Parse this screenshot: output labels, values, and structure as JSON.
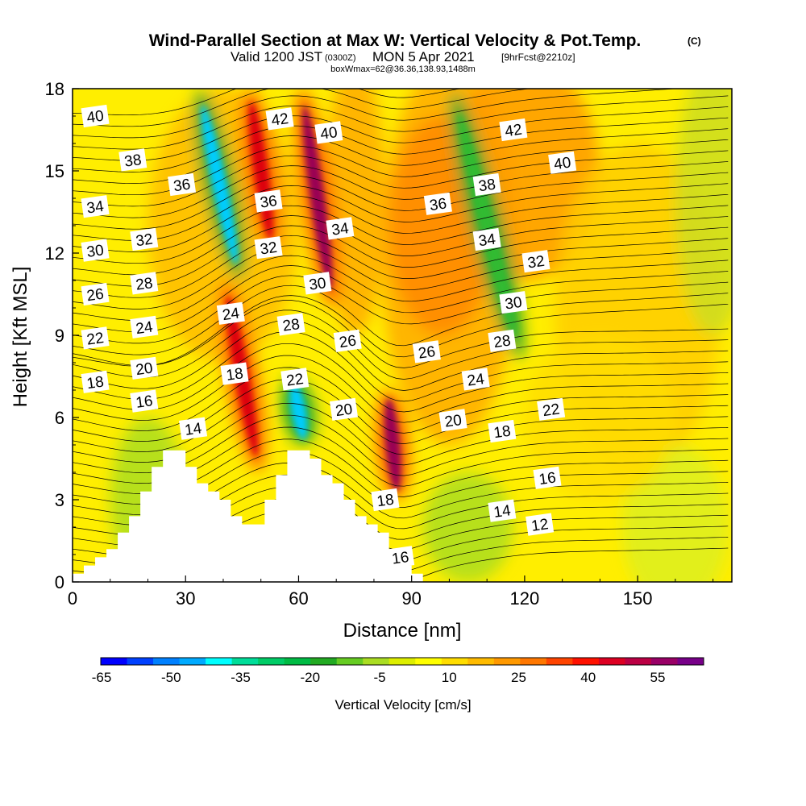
{
  "header": {
    "title": "Wind-Parallel Section at Max W: Vertical Velocity & Pot.Temp.",
    "copyright": "(C)",
    "valid_prefix": "Valid 1200 JST",
    "valid_utc": "(0300Z)",
    "valid_date": "MON 5 Apr 2021",
    "forecast": "[9hrFcst@2210z]",
    "boxinfo": "boxWmax=62@36.36,138.93,1488m"
  },
  "chart_data": {
    "type": "heatmap",
    "title": "Wind-Parallel Section at Max W: Vertical Velocity & Pot.Temp.",
    "xlabel": "Distance [nm]",
    "ylabel": "Height [Kft MSL]",
    "xlim": [
      0,
      175
    ],
    "ylim": [
      0,
      18
    ],
    "x_ticks": [
      0,
      30,
      60,
      90,
      120,
      150
    ],
    "y_ticks": [
      0,
      3,
      6,
      9,
      12,
      15,
      18
    ],
    "colorbar": {
      "label": "Vertical Velocity [cm/s]",
      "ticks": [
        "-65",
        "-50",
        "-35",
        "-20",
        "-5",
        "10",
        "25",
        "40",
        "55"
      ],
      "colors": [
        "#0000ff",
        "#0040ff",
        "#0080ff",
        "#00aaff",
        "#00ffff",
        "#00dd99",
        "#00cc66",
        "#00bb44",
        "#22aa22",
        "#66cc22",
        "#aadd22",
        "#ddee00",
        "#ffff00",
        "#ffdd00",
        "#ffbb00",
        "#ff9900",
        "#ff7700",
        "#ff4400",
        "#ff1100",
        "#dd0022",
        "#bb0044",
        "#990066",
        "#770088"
      ]
    },
    "vv_features": [
      {
        "type": "updraft",
        "x": 45,
        "y_range": [
          4,
          11
        ],
        "peak": 45
      },
      {
        "type": "updraft",
        "x": 50,
        "y_range": [
          12,
          18
        ],
        "peak": 40
      },
      {
        "type": "updraft",
        "x": 65,
        "y_range": [
          10,
          18
        ],
        "peak": 55
      },
      {
        "type": "updraft",
        "x": 85,
        "y_range": [
          3,
          7
        ],
        "peak": 50
      },
      {
        "type": "downdraft",
        "x": 39,
        "y_range": [
          11,
          18
        ],
        "peak": -45
      },
      {
        "type": "downdraft",
        "x": 60,
        "y_range": [
          5,
          7.5
        ],
        "peak": -50
      },
      {
        "type": "downdraft",
        "x": 110,
        "y_range": [
          8,
          18
        ],
        "peak": -20
      }
    ],
    "terrain": {
      "x": [
        0,
        3,
        6,
        9,
        12,
        15,
        18,
        21,
        24,
        27,
        30,
        33,
        36,
        39,
        42,
        45,
        48,
        51,
        54,
        57,
        60,
        63,
        66,
        69,
        72,
        75,
        78,
        81,
        84,
        87,
        90,
        93
      ],
      "y": [
        0.3,
        0.6,
        0.9,
        1.2,
        1.8,
        2.4,
        3.3,
        4.2,
        4.8,
        4.8,
        4.2,
        3.6,
        3.3,
        3.0,
        2.4,
        2.1,
        2.1,
        3.0,
        3.9,
        4.8,
        4.8,
        4.5,
        3.9,
        3.6,
        3.0,
        2.4,
        2.1,
        1.8,
        0.9,
        0.6,
        0.3,
        0.0
      ]
    },
    "theta_labels": [
      {
        "text": "40",
        "x": 6,
        "y": 17.0
      },
      {
        "text": "38",
        "x": 16,
        "y": 15.4
      },
      {
        "text": "36",
        "x": 29,
        "y": 14.5
      },
      {
        "text": "34",
        "x": 6,
        "y": 13.7
      },
      {
        "text": "32",
        "x": 19,
        "y": 12.5
      },
      {
        "text": "30",
        "x": 6,
        "y": 12.1
      },
      {
        "text": "28",
        "x": 19,
        "y": 10.9
      },
      {
        "text": "26",
        "x": 6,
        "y": 10.5
      },
      {
        "text": "24",
        "x": 19,
        "y": 9.3
      },
      {
        "text": "22",
        "x": 6,
        "y": 8.9
      },
      {
        "text": "20",
        "x": 19,
        "y": 7.8
      },
      {
        "text": "18",
        "x": 6,
        "y": 7.3
      },
      {
        "text": "16",
        "x": 19,
        "y": 6.6
      },
      {
        "text": "14",
        "x": 32,
        "y": 5.6
      },
      {
        "text": "42",
        "x": 55,
        "y": 16.9
      },
      {
        "text": "36",
        "x": 52,
        "y": 13.9
      },
      {
        "text": "32",
        "x": 52,
        "y": 12.2
      },
      {
        "text": "24",
        "x": 42,
        "y": 9.8
      },
      {
        "text": "18",
        "x": 43,
        "y": 7.6
      },
      {
        "text": "40",
        "x": 68,
        "y": 16.4
      },
      {
        "text": "34",
        "x": 71,
        "y": 12.9
      },
      {
        "text": "30",
        "x": 65,
        "y": 10.9
      },
      {
        "text": "28",
        "x": 58,
        "y": 9.4
      },
      {
        "text": "26",
        "x": 73,
        "y": 8.8
      },
      {
        "text": "22",
        "x": 59,
        "y": 7.4
      },
      {
        "text": "20",
        "x": 72,
        "y": 6.3
      },
      {
        "text": "18",
        "x": 83,
        "y": 3.0
      },
      {
        "text": "16",
        "x": 87,
        "y": 0.9
      },
      {
        "text": "42",
        "x": 117,
        "y": 16.5
      },
      {
        "text": "40",
        "x": 130,
        "y": 15.3
      },
      {
        "text": "38",
        "x": 110,
        "y": 14.5
      },
      {
        "text": "36",
        "x": 97,
        "y": 13.8
      },
      {
        "text": "34",
        "x": 110,
        "y": 12.5
      },
      {
        "text": "32",
        "x": 123,
        "y": 11.7
      },
      {
        "text": "30",
        "x": 117,
        "y": 10.2
      },
      {
        "text": "28",
        "x": 114,
        "y": 8.8
      },
      {
        "text": "26",
        "x": 94,
        "y": 8.4
      },
      {
        "text": "24",
        "x": 107,
        "y": 7.4
      },
      {
        "text": "22",
        "x": 127,
        "y": 6.3
      },
      {
        "text": "20",
        "x": 101,
        "y": 5.9
      },
      {
        "text": "18",
        "x": 114,
        "y": 5.5
      },
      {
        "text": "16",
        "x": 126,
        "y": 3.8
      },
      {
        "text": "14",
        "x": 114,
        "y": 2.6
      },
      {
        "text": "12",
        "x": 124,
        "y": 2.1
      }
    ]
  },
  "colors": {
    "background": "#ffffff",
    "terrain": "#ffffff",
    "contour": "#000000",
    "field_base": "#ffee00"
  }
}
